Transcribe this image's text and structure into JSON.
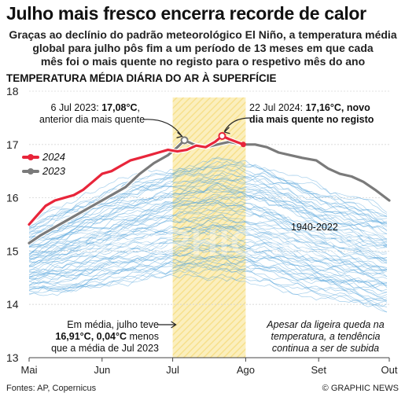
{
  "header": {
    "title": "Julho mais fresco encerra recorde de calor",
    "subtitle_lines": [
      "Graças ao declínio do padrão meteorológico El Niño, a temperatura média",
      "global para julho pôs fim a um período de 13 meses em que cada",
      "mês foi o mais quente no registo para o respetivo mês do ano"
    ],
    "chart_heading": "TEMPERATURA MÉDIA DIÁRIA DO AR À SUPERFÍCIE"
  },
  "annotations": {
    "left_date": "6 Jul 2023:",
    "left_value": "17,08°C",
    "left_suffix": ",",
    "left_line2": "anterior dia mais quente",
    "right_date": "22 Jul 2024:",
    "right_value": "17,16°C, novo",
    "right_line2": "dia mais quente no registo",
    "bottom_left_1": "Em média, julho teve",
    "bottom_left_2": "16,91°C, 0,04°C",
    "bottom_left_2_suffix": " menos",
    "bottom_left_3": "que a média de Jul 2023",
    "bottom_right_1": "Apesar da ligeira queda na",
    "bottom_right_2": "temperatura, a tendência",
    "bottom_right_3": "continua a ser de subida",
    "range_label": "1940-2022"
  },
  "legend": {
    "series_2024": "2024",
    "series_2023": "2023"
  },
  "footer": {
    "source": "Fontes: AP, Copernicus",
    "credit": "© GRAPHIC NEWS"
  },
  "watermark": "GRAPHIC NEWS",
  "colors": {
    "series_2024": "#e8253a",
    "series_2023": "#7a7a7a",
    "historical": "#5ba7dd",
    "july_band": "#f7e08c",
    "axis": "#444444"
  },
  "chart_data": {
    "type": "line",
    "title": "TEMPERATURA MÉDIA DIÁRIA DO AR À SUPERFÍCIE",
    "xlabel": "",
    "ylabel": "",
    "x_ticks": [
      "Mai",
      "Jun",
      "Jul",
      "Ago",
      "Set",
      "Out"
    ],
    "xlim": [
      "1 Mai",
      "1 Out"
    ],
    "ylim": [
      13,
      18
    ],
    "y_ticks": [
      13,
      14,
      15,
      16,
      17,
      18
    ],
    "highlight_band": {
      "from": "1 Jul",
      "to": "1 Ago",
      "label": "Jul"
    },
    "series": [
      {
        "name": "2024",
        "x": [
          "1 Mai",
          "4 Mai",
          "8 Mai",
          "12 Mai",
          "16 Mai",
          "20 Mai",
          "24 Mai",
          "28 Mai",
          "1 Jun",
          "5 Jun",
          "9 Jun",
          "13 Jun",
          "17 Jun",
          "21 Jun",
          "25 Jun",
          "29 Jun",
          "3 Jul",
          "7 Jul",
          "11 Jul",
          "15 Jul",
          "19 Jul",
          "22 Jul",
          "25 Jul",
          "28 Jul",
          "31 Jul"
        ],
        "values": [
          15.5,
          15.65,
          15.85,
          15.95,
          16.0,
          16.05,
          16.15,
          16.3,
          16.45,
          16.5,
          16.6,
          16.7,
          16.75,
          16.8,
          16.85,
          16.9,
          16.87,
          16.9,
          16.98,
          16.95,
          17.05,
          17.16,
          17.1,
          17.05,
          17.0
        ]
      },
      {
        "name": "2023",
        "x": [
          "1 Mai",
          "6 Mai",
          "12 Mai",
          "18 Mai",
          "24 Mai",
          "30 Mai",
          "5 Jun",
          "11 Jun",
          "17 Jun",
          "23 Jun",
          "29 Jun",
          "3 Jul",
          "6 Jul",
          "10 Jul",
          "15 Jul",
          "20 Jul",
          "25 Jul",
          "31 Jul",
          "5 Ago",
          "10 Ago",
          "15 Ago",
          "20 Ago",
          "25 Ago",
          "31 Ago",
          "5 Set",
          "10 Set",
          "15 Set",
          "20 Set",
          "25 Set",
          "1 Out"
        ],
        "values": [
          15.15,
          15.3,
          15.45,
          15.6,
          15.75,
          15.9,
          16.05,
          16.2,
          16.45,
          16.65,
          16.8,
          16.95,
          17.08,
          17.0,
          16.95,
          17.0,
          17.05,
          17.0,
          17.0,
          16.95,
          16.85,
          16.8,
          16.75,
          16.7,
          16.55,
          16.45,
          16.4,
          16.3,
          16.15,
          15.95
        ]
      },
      {
        "name": "1940-2022",
        "envelope_upper": [
          15.5,
          15.9,
          16.3,
          16.55,
          16.75,
          16.6,
          16.2,
          15.7
        ],
        "envelope_lower": [
          14.2,
          14.3,
          14.45,
          14.55,
          14.55,
          14.45,
          14.25,
          13.95
        ],
        "envelope_x": [
          "1 Mai",
          "21 Mai",
          "10 Jun",
          "30 Jun",
          "20 Jul",
          "9 Ago",
          "29 Ago",
          "1 Out"
        ]
      }
    ]
  }
}
